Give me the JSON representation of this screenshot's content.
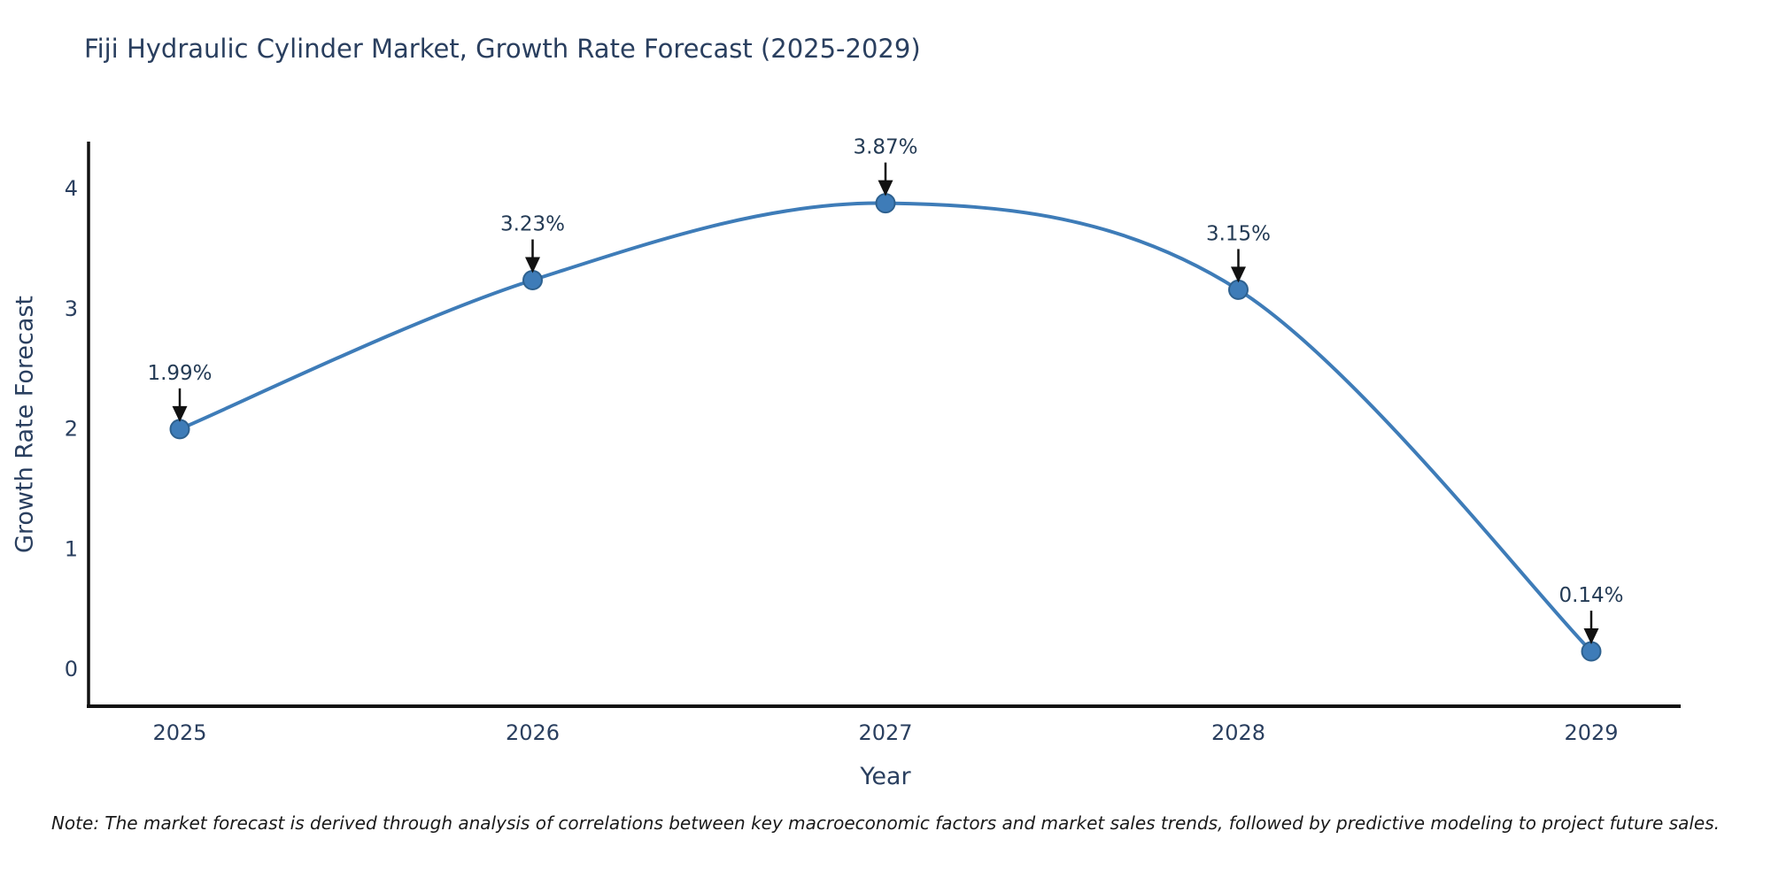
{
  "figure": {
    "note": "Note: The market forecast is derived through analysis of correlations between key macroeconomic factors and market sales trends, followed by predictive modeling to project future sales."
  },
  "chart_data": {
    "type": "line",
    "title": "Fiji Hydraulic Cylinder Market, Growth Rate Forecast (2025-2029)",
    "xlabel": "Year",
    "ylabel": "Growth Rate Forecast",
    "categories": [
      "2025",
      "2026",
      "2027",
      "2028",
      "2029"
    ],
    "series": [
      {
        "name": "Growth Rate Forecast",
        "values": [
          1.99,
          3.23,
          3.87,
          3.15,
          0.14
        ]
      }
    ],
    "point_labels": [
      "1.99%",
      "3.23%",
      "3.87%",
      "3.15%",
      "0.14%"
    ],
    "yticks": [
      0,
      1,
      2,
      3,
      4
    ],
    "ylim": [
      -0.32,
      4.38
    ],
    "line_shape": "spline",
    "grid": false,
    "legend_position": "none",
    "colors": {
      "line": "#3e7cb8",
      "marker_fill": "#3e7cb8",
      "marker_edge": "#2e618f",
      "arrow": "#111111",
      "axis": "#111111",
      "text": "#2a3f5f"
    }
  }
}
